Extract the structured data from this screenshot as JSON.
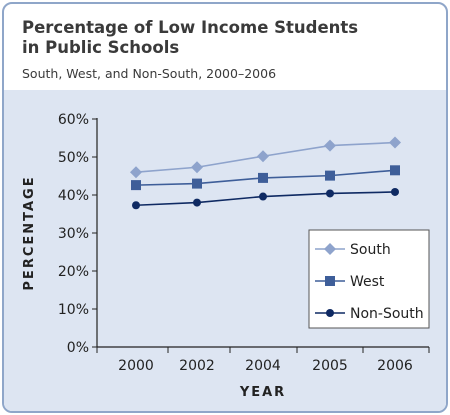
{
  "chart_data": {
    "type": "line",
    "title": "Percentage of Low Income Students\nin Public Schools",
    "subtitle": "South, West, and Non-South, 2000–2006",
    "xlabel": "YEAR",
    "ylabel": "PERCENTAGE",
    "categories": [
      "2000",
      "2002",
      "2004",
      "2005",
      "2006"
    ],
    "ylim": [
      0,
      60
    ],
    "yticks": [
      "0%",
      "10%",
      "20%",
      "30%",
      "40%",
      "50%",
      "60%"
    ],
    "grid": false,
    "legend_position": "bottom-right",
    "series": [
      {
        "name": "South",
        "values": [
          46,
          47.3,
          50.2,
          53,
          53.8
        ],
        "color": "#8ea3cc",
        "marker": "diamond"
      },
      {
        "name": "West",
        "values": [
          42.6,
          43,
          44.5,
          45.1,
          46.5
        ],
        "color": "#3e5e99",
        "marker": "square"
      },
      {
        "name": "Non-South",
        "values": [
          37.3,
          38,
          39.6,
          40.4,
          40.8
        ],
        "color": "#0f2a63",
        "marker": "circle"
      }
    ]
  }
}
